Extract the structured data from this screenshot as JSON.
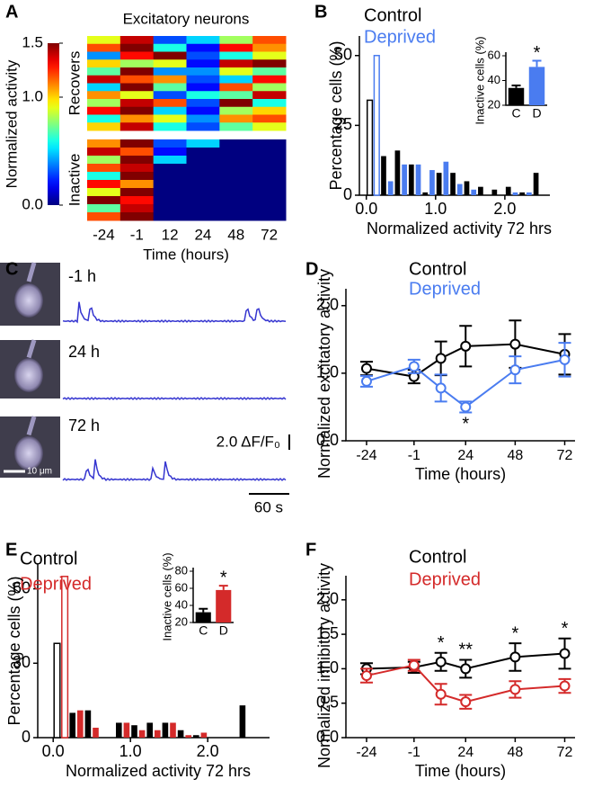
{
  "chart_data": [
    {
      "type": "heatmap",
      "panel": "A",
      "title": "Excitatory neurons",
      "categories": [
        "-24",
        "-1",
        "12",
        "24",
        "48",
        "72"
      ],
      "xlabel": "Time (hours)",
      "groups": [
        {
          "name": "Recovers",
          "rows": [
            [
              0.9,
              1.4,
              0.3,
              0.5,
              0.8,
              1.2
            ],
            [
              1.2,
              1.5,
              0.6,
              0.2,
              1.3,
              1.1
            ],
            [
              0.4,
              1.3,
              1.5,
              0.3,
              0.6,
              0.9
            ],
            [
              1.0,
              0.8,
              0.9,
              0.2,
              1.4,
              1.5
            ],
            [
              0.7,
              1.5,
              0.4,
              0.4,
              0.9,
              0.7
            ],
            [
              1.4,
              1.2,
              1.1,
              0.3,
              0.5,
              1.3
            ],
            [
              0.5,
              1.5,
              0.7,
              0.2,
              1.2,
              0.8
            ],
            [
              1.1,
              0.9,
              0.3,
              0.6,
              0.7,
              1.4
            ],
            [
              0.8,
              1.4,
              1.2,
              0.3,
              1.5,
              0.6
            ],
            [
              1.3,
              1.5,
              0.5,
              0.2,
              0.8,
              1.0
            ],
            [
              0.6,
              1.1,
              0.9,
              0.4,
              1.1,
              1.2
            ],
            [
              1.0,
              1.4,
              0.6,
              0.3,
              0.7,
              0.9
            ]
          ]
        },
        {
          "name": "Inactive",
          "rows": [
            [
              1.1,
              1.5,
              0.3,
              0.5,
              0,
              0
            ],
            [
              1.4,
              1.2,
              0.2,
              0,
              0,
              0
            ],
            [
              0.8,
              1.5,
              0.5,
              0,
              0,
              0
            ],
            [
              1.2,
              1.4,
              0,
              0,
              0,
              0
            ],
            [
              0.6,
              1.5,
              0,
              0,
              0,
              0
            ],
            [
              1.3,
              1.1,
              0,
              0,
              0,
              0
            ],
            [
              0.9,
              1.5,
              0,
              0,
              0,
              0
            ],
            [
              1.5,
              1.3,
              0,
              0,
              0,
              0
            ],
            [
              0.7,
              1.4,
              0,
              0,
              0,
              0
            ],
            [
              1.2,
              1.5,
              0,
              0,
              0,
              0
            ]
          ]
        }
      ],
      "colormap": "jet",
      "clim": [
        0,
        1.5
      ],
      "colorbar_label": "Normalized activity",
      "colorbar_ticks": [
        {
          "value": 0,
          "label": "0.0"
        },
        {
          "value": 1,
          "label": "1.0"
        },
        1.5
      ]
    },
    {
      "type": "histogram",
      "panel": "B",
      "bins": [
        0,
        0.2,
        0.4,
        0.6,
        0.8,
        1,
        1.2,
        1.4,
        1.6,
        1.8,
        2,
        2.2,
        2.4,
        2.6
      ],
      "series": [
        {
          "name": "Control",
          "color": "#000000",
          "values": [
            34,
            14,
            16,
            11,
            1,
            8,
            8,
            5,
            3,
            2,
            3,
            1,
            8
          ]
        },
        {
          "name": "Deprived",
          "color": "#4a7cf0",
          "values": [
            50,
            5,
            11,
            11,
            9,
            12,
            4,
            2,
            0,
            0,
            1,
            1,
            0
          ]
        }
      ],
      "open_first_bin": true,
      "xlim": [
        -0.1,
        2.65
      ],
      "xticks": [
        {
          "value": 0,
          "label": "0.0"
        },
        {
          "value": 1,
          "label": "1.0"
        },
        {
          "value": 2,
          "label": "2.0"
        }
      ],
      "ylim": [
        0,
        57
      ],
      "yticks": [
        0,
        25,
        50
      ],
      "xlabel": "Normalized activity 72 hrs",
      "ylabel": "Percentage cells (%)",
      "inset": {
        "categories": [
          "C",
          "D"
        ],
        "values": [
          34,
          51
        ],
        "errors": [
          2,
          5
        ],
        "colors": [
          "#000000",
          "#4a7cf0"
        ],
        "ylim": [
          20,
          60
        ],
        "yticks": [
          20,
          40,
          60
        ],
        "ylabel": "Inactive cells (%)",
        "annotation": "*"
      }
    },
    {
      "type": "traces",
      "panel": "C",
      "labels": [
        "-1 h",
        "24 h",
        "72 h"
      ],
      "scale_y": "2.0 ΔF/F₀",
      "scale_x": "60 s",
      "scale_image": "10 μm"
    },
    {
      "type": "line",
      "panel": "D",
      "x": [
        -24,
        -1,
        12,
        24,
        48,
        72
      ],
      "series": [
        {
          "name": "Control",
          "color": "#000000",
          "values": [
            1.07,
            0.95,
            1.22,
            1.4,
            1.43,
            1.28
          ],
          "errors": [
            0.1,
            0.1,
            0.25,
            0.3,
            0.35,
            0.3
          ]
        },
        {
          "name": "Deprived",
          "color": "#4a7cf0",
          "values": [
            0.88,
            1.1,
            0.78,
            0.5,
            1.05,
            1.2
          ],
          "errors": [
            0.08,
            0.1,
            0.2,
            0.08,
            0.2,
            0.25
          ]
        }
      ],
      "xlim": [
        -34,
        77
      ],
      "xticks": [
        -24,
        -1,
        24,
        48,
        72
      ],
      "ylim": [
        0,
        2.25
      ],
      "yticks": [
        {
          "value": 0,
          "label": "0.0"
        },
        {
          "value": 1,
          "label": "1.0"
        },
        {
          "value": 2,
          "label": "2.0"
        }
      ],
      "xlabel": "Time (hours)",
      "ylabel": "Normalized excitatory activity",
      "annotations": [
        {
          "x": 24,
          "text": "*"
        }
      ]
    },
    {
      "type": "histogram",
      "panel": "E",
      "bins": [
        0,
        0.2,
        0.4,
        0.6,
        0.8,
        1,
        1.2,
        1.4,
        1.6,
        1.8,
        2,
        2.2,
        2.4,
        2.6
      ],
      "series": [
        {
          "name": "Control",
          "color": "#000000",
          "values": [
            38,
            10,
            11,
            0,
            6,
            5,
            6,
            6,
            3,
            1,
            0,
            0,
            13
          ]
        },
        {
          "name": "Deprived",
          "color": "#d42a2a",
          "values": [
            65,
            11,
            4,
            0,
            6,
            3,
            3,
            6,
            1,
            2,
            0,
            0,
            0
          ]
        }
      ],
      "open_first_bin": true,
      "xlim": [
        -0.2,
        2.8
      ],
      "xticks": [
        {
          "value": 0,
          "label": "0.0"
        },
        {
          "value": 1,
          "label": "1.0"
        },
        {
          "value": 2,
          "label": "2.0"
        }
      ],
      "ylim": [
        0,
        70
      ],
      "yticks": [
        0,
        30,
        60
      ],
      "xlabel": "Normalized activity 72 hrs",
      "ylabel": "Percentage cells (%)",
      "inset": {
        "categories": [
          "C",
          "D"
        ],
        "values": [
          32,
          58
        ],
        "errors": [
          4,
          5
        ],
        "colors": [
          "#000000",
          "#d42a2a"
        ],
        "ylim": [
          20,
          80
        ],
        "yticks": [
          20,
          40,
          60,
          80
        ],
        "ylabel": "Inactive cells (%)",
        "annotation": "*"
      }
    },
    {
      "type": "line",
      "panel": "F",
      "x": [
        -24,
        -1,
        12,
        24,
        48,
        72
      ],
      "series": [
        {
          "name": "Control",
          "color": "#000000",
          "values": [
            1.0,
            1.02,
            1.1,
            1.0,
            1.17,
            1.22
          ],
          "errors": [
            0.08,
            0.08,
            0.13,
            0.13,
            0.2,
            0.22
          ]
        },
        {
          "name": "Deprived",
          "color": "#d42a2a",
          "values": [
            0.9,
            1.05,
            0.63,
            0.52,
            0.7,
            0.75
          ],
          "errors": [
            0.1,
            0.08,
            0.15,
            0.1,
            0.12,
            0.1
          ]
        }
      ],
      "xlim": [
        -34,
        77
      ],
      "xticks": [
        -24,
        -1,
        24,
        48,
        72
      ],
      "ylim": [
        0,
        2.35
      ],
      "yticks": [
        {
          "value": 0,
          "label": "0.0"
        },
        {
          "value": 0.5,
          "label": "0.5"
        },
        {
          "value": 1,
          "label": "1.0"
        },
        {
          "value": 1.5,
          "label": "1.5"
        },
        {
          "value": 2,
          "label": "2.0"
        }
      ],
      "xlabel": "Time (hours)",
      "ylabel": "Normalized inhibitory activity",
      "annotations": [
        {
          "x": 12,
          "text": "*"
        },
        {
          "x": 24,
          "text": "**"
        },
        {
          "x": 48,
          "text": "*"
        },
        {
          "x": 72,
          "text": "*"
        }
      ]
    }
  ]
}
